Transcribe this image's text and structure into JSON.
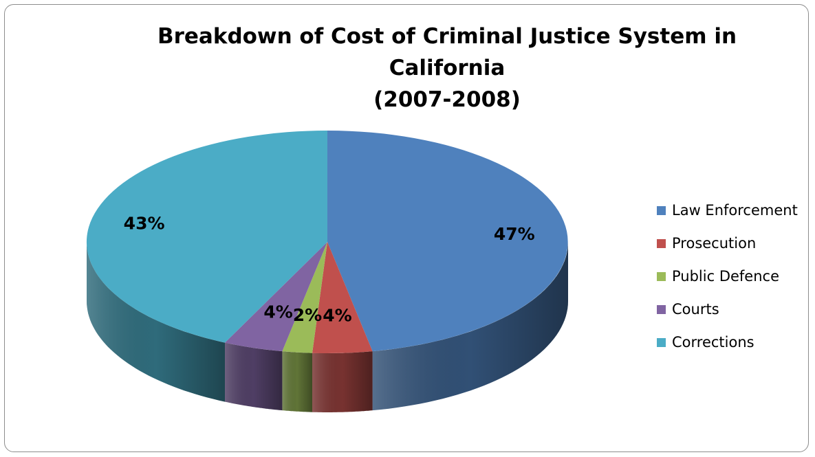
{
  "chart_data": {
    "type": "pie",
    "title": [
      "Breakdown of Cost of Criminal Justice System in California",
      "(2007-2008)"
    ],
    "categories": [
      "Law Enforcement",
      "Prosecution",
      "Public Defence",
      "Courts",
      "Corrections"
    ],
    "values": [
      47,
      4,
      2,
      4,
      43
    ],
    "data_labels": [
      "47%",
      "4%",
      "2%",
      "4%",
      "43%"
    ],
    "colors": [
      "#4F81BD",
      "#C0504D",
      "#9BBB59",
      "#8064A2",
      "#4BACC6"
    ],
    "legend_position": "right",
    "style": "3d"
  }
}
